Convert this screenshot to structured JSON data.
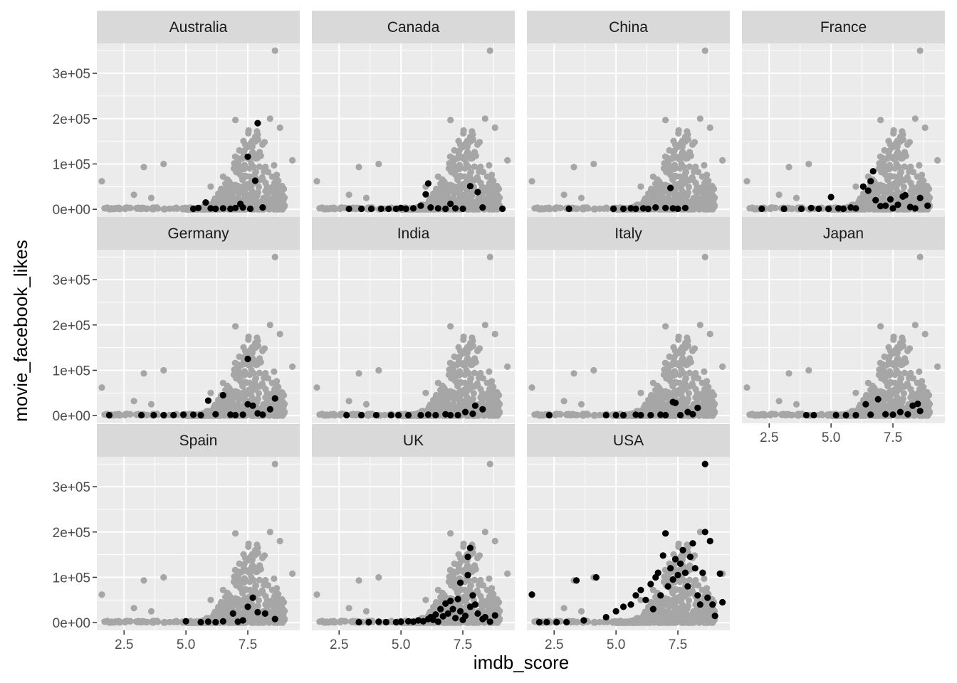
{
  "chart_data": {
    "type": "scatter",
    "facet_variable": "country",
    "xlabel": "imdb_score",
    "ylabel": "movie_facebook_likes",
    "xlim": [
      1.4,
      9.6
    ],
    "ylim": [
      -17000,
      366000
    ],
    "x_ticks": [
      2.5,
      5.0,
      7.5
    ],
    "x_tick_labels": [
      "2.5",
      "5.0",
      "7.5"
    ],
    "y_ticks": [
      0,
      100000,
      200000,
      300000
    ],
    "y_tick_labels": [
      "0e+00",
      "1e+05",
      "2e+05",
      "3e+05"
    ],
    "grid": true,
    "colors": {
      "panel_background": "#ebebeb",
      "grid": "#ffffff",
      "strip_background": "#d9d9d9",
      "background_points": "#a6a6a6",
      "highlight_points": "#000000"
    },
    "background_series_note": "",
    "facets": [
      {
        "name": "Australia",
        "points": [
          [
            5.3,
            1000
          ],
          [
            5.5,
            3000
          ],
          [
            5.8,
            15000
          ],
          [
            6.0,
            2000
          ],
          [
            6.2,
            1000
          ],
          [
            6.5,
            2000
          ],
          [
            6.8,
            1000
          ],
          [
            7.0,
            3000
          ],
          [
            7.2,
            12000
          ],
          [
            7.3,
            4000
          ],
          [
            7.5,
            116000
          ],
          [
            7.6,
            1000
          ],
          [
            7.8,
            63000
          ],
          [
            7.9,
            190000
          ],
          [
            8.1,
            4000
          ]
        ]
      },
      {
        "name": "Canada",
        "points": [
          [
            2.9,
            1000
          ],
          [
            3.4,
            1000
          ],
          [
            3.8,
            1000
          ],
          [
            4.2,
            1000
          ],
          [
            4.5,
            1000
          ],
          [
            4.8,
            1000
          ],
          [
            5.0,
            3000
          ],
          [
            5.2,
            1000
          ],
          [
            5.5,
            2000
          ],
          [
            5.8,
            8000
          ],
          [
            6.0,
            33000
          ],
          [
            6.1,
            57000
          ],
          [
            6.2,
            4000
          ],
          [
            6.5,
            2000
          ],
          [
            6.8,
            1000
          ],
          [
            7.0,
            12000
          ],
          [
            7.2,
            2000
          ],
          [
            7.5,
            1000
          ],
          [
            7.8,
            51000
          ],
          [
            8.1,
            38000
          ],
          [
            8.3,
            4000
          ],
          [
            9.1,
            1000
          ]
        ]
      },
      {
        "name": "China",
        "points": [
          [
            3.1,
            1000
          ],
          [
            4.9,
            1000
          ],
          [
            5.3,
            1000
          ],
          [
            5.6,
            2000
          ],
          [
            5.8,
            1000
          ],
          [
            6.1,
            2000
          ],
          [
            6.3,
            1000
          ],
          [
            6.6,
            4000
          ],
          [
            7.0,
            3000
          ],
          [
            7.2,
            47000
          ],
          [
            7.3,
            2000
          ],
          [
            7.5,
            1000
          ],
          [
            7.8,
            3000
          ]
        ]
      },
      {
        "name": "France",
        "points": [
          [
            2.2,
            1000
          ],
          [
            3.1,
            1000
          ],
          [
            3.8,
            1000
          ],
          [
            4.2,
            3000
          ],
          [
            4.5,
            1000
          ],
          [
            4.9,
            1000
          ],
          [
            5.0,
            27000
          ],
          [
            5.3,
            2000
          ],
          [
            5.5,
            1000
          ],
          [
            5.8,
            4000
          ],
          [
            6.0,
            2000
          ],
          [
            6.3,
            50000
          ],
          [
            6.5,
            41000
          ],
          [
            6.6,
            62000
          ],
          [
            6.7,
            84000
          ],
          [
            6.8,
            20000
          ],
          [
            7.0,
            7000
          ],
          [
            7.2,
            8000
          ],
          [
            7.4,
            22000
          ],
          [
            7.5,
            2000
          ],
          [
            7.7,
            10000
          ],
          [
            7.9,
            28000
          ],
          [
            8.0,
            31000
          ],
          [
            8.2,
            5000
          ],
          [
            8.4,
            2000
          ],
          [
            8.6,
            25000
          ],
          [
            8.9,
            8000
          ]
        ]
      },
      {
        "name": "Germany",
        "points": [
          [
            1.9,
            1000
          ],
          [
            3.2,
            1000
          ],
          [
            3.7,
            1000
          ],
          [
            4.1,
            1000
          ],
          [
            4.5,
            1000
          ],
          [
            4.9,
            2000
          ],
          [
            5.3,
            2000
          ],
          [
            5.6,
            1000
          ],
          [
            5.9,
            33000
          ],
          [
            6.2,
            3000
          ],
          [
            6.5,
            45000
          ],
          [
            6.8,
            2000
          ],
          [
            7.0,
            1000
          ],
          [
            7.3,
            2000
          ],
          [
            7.5,
            25000
          ],
          [
            7.5,
            125000
          ],
          [
            7.7,
            22000
          ],
          [
            7.9,
            5000
          ],
          [
            8.1,
            2000
          ],
          [
            8.4,
            14000
          ],
          [
            8.6,
            38000
          ]
        ]
      },
      {
        "name": "India",
        "points": [
          [
            2.8,
            1000
          ],
          [
            3.4,
            1000
          ],
          [
            4.0,
            1000
          ],
          [
            4.6,
            1000
          ],
          [
            4.9,
            1000
          ],
          [
            5.3,
            1000
          ],
          [
            5.8,
            1000
          ],
          [
            6.1,
            2000
          ],
          [
            6.4,
            1000
          ],
          [
            6.8,
            3000
          ],
          [
            7.0,
            1000
          ],
          [
            7.3,
            1000
          ],
          [
            7.6,
            8000
          ],
          [
            7.9,
            4000
          ],
          [
            8.0,
            22000
          ],
          [
            8.3,
            14000
          ]
        ]
      },
      {
        "name": "Italy",
        "points": [
          [
            2.3,
            1000
          ],
          [
            4.6,
            1000
          ],
          [
            5.0,
            1000
          ],
          [
            5.3,
            1000
          ],
          [
            5.8,
            2000
          ],
          [
            6.0,
            1000
          ],
          [
            6.4,
            1000
          ],
          [
            6.8,
            2000
          ],
          [
            7.0,
            1000
          ],
          [
            7.3,
            30000
          ],
          [
            7.4,
            28000
          ],
          [
            7.6,
            1000
          ],
          [
            7.9,
            8000
          ],
          [
            8.1,
            3000
          ],
          [
            8.3,
            17000
          ]
        ]
      },
      {
        "name": "Japan",
        "points": [
          [
            4.0,
            1000
          ],
          [
            4.3,
            1000
          ],
          [
            5.2,
            1000
          ],
          [
            5.6,
            1000
          ],
          [
            6.0,
            1000
          ],
          [
            6.4,
            25000
          ],
          [
            6.6,
            2000
          ],
          [
            6.9,
            36000
          ],
          [
            7.2,
            3000
          ],
          [
            7.5,
            2000
          ],
          [
            7.8,
            8000
          ],
          [
            8.1,
            3000
          ],
          [
            8.3,
            22000
          ],
          [
            8.5,
            26000
          ],
          [
            8.6,
            10000
          ]
        ]
      },
      {
        "name": "Spain",
        "points": [
          [
            5.0,
            3000
          ],
          [
            5.6,
            1000
          ],
          [
            5.9,
            2000
          ],
          [
            6.2,
            1000
          ],
          [
            6.5,
            3000
          ],
          [
            6.9,
            20000
          ],
          [
            7.1,
            2000
          ],
          [
            7.3,
            5000
          ],
          [
            7.5,
            35000
          ],
          [
            7.7,
            55000
          ],
          [
            7.9,
            23000
          ],
          [
            8.2,
            20000
          ],
          [
            8.6,
            8000
          ]
        ]
      },
      {
        "name": "UK",
        "points": [
          [
            3.3,
            1000
          ],
          [
            3.7,
            1000
          ],
          [
            4.1,
            2000
          ],
          [
            4.4,
            1000
          ],
          [
            4.8,
            1000
          ],
          [
            5.0,
            2000
          ],
          [
            5.3,
            3000
          ],
          [
            5.5,
            2000
          ],
          [
            5.7,
            5000
          ],
          [
            5.9,
            3000
          ],
          [
            6.1,
            8000
          ],
          [
            6.2,
            12000
          ],
          [
            6.3,
            6000
          ],
          [
            6.4,
            18000
          ],
          [
            6.5,
            2000
          ],
          [
            6.6,
            30000
          ],
          [
            6.7,
            14000
          ],
          [
            6.8,
            42000
          ],
          [
            6.9,
            20000
          ],
          [
            7.0,
            48000
          ],
          [
            7.1,
            30000
          ],
          [
            7.2,
            10000
          ],
          [
            7.3,
            52000
          ],
          [
            7.4,
            25000
          ],
          [
            7.4,
            88000
          ],
          [
            7.5,
            6000
          ],
          [
            7.6,
            15000
          ],
          [
            7.7,
            105000
          ],
          [
            7.7,
            145000
          ],
          [
            7.8,
            165000
          ],
          [
            7.8,
            35000
          ],
          [
            7.9,
            60000
          ],
          [
            8.0,
            40000
          ],
          [
            8.1,
            20000
          ],
          [
            8.3,
            8000
          ],
          [
            8.4,
            12000
          ],
          [
            8.6,
            2000
          ],
          [
            8.8,
            16000
          ]
        ]
      },
      {
        "name": "USA",
        "points": [
          [
            1.6,
            62000
          ],
          [
            1.9,
            1000
          ],
          [
            2.2,
            1000
          ],
          [
            2.6,
            1000
          ],
          [
            3.0,
            1000
          ],
          [
            3.4,
            93000
          ],
          [
            3.7,
            5000
          ],
          [
            4.2,
            100000
          ],
          [
            4.6,
            12000
          ],
          [
            5.0,
            25000
          ],
          [
            5.3,
            35000
          ],
          [
            5.6,
            40000
          ],
          [
            5.8,
            60000
          ],
          [
            6.0,
            72000
          ],
          [
            6.2,
            50000
          ],
          [
            6.4,
            85000
          ],
          [
            6.5,
            30000
          ],
          [
            6.6,
            100000
          ],
          [
            6.7,
            110000
          ],
          [
            6.8,
            60000
          ],
          [
            6.9,
            148000
          ],
          [
            7.0,
            197000
          ],
          [
            7.1,
            80000
          ],
          [
            7.2,
            120000
          ],
          [
            7.3,
            95000
          ],
          [
            7.4,
            140000
          ],
          [
            7.5,
            105000
          ],
          [
            7.6,
            130000
          ],
          [
            7.7,
            160000
          ],
          [
            7.8,
            110000
          ],
          [
            7.9,
            80000
          ],
          [
            8.0,
            145000
          ],
          [
            8.1,
            175000
          ],
          [
            8.2,
            120000
          ],
          [
            8.3,
            60000
          ],
          [
            8.4,
            40000
          ],
          [
            8.5,
            110000
          ],
          [
            8.6,
            200000
          ],
          [
            8.6,
            350000
          ],
          [
            8.7,
            55000
          ],
          [
            8.8,
            180000
          ],
          [
            8.9,
            40000
          ],
          [
            9.0,
            15000
          ],
          [
            9.2,
            108000
          ],
          [
            9.3,
            45000
          ]
        ]
      }
    ]
  }
}
